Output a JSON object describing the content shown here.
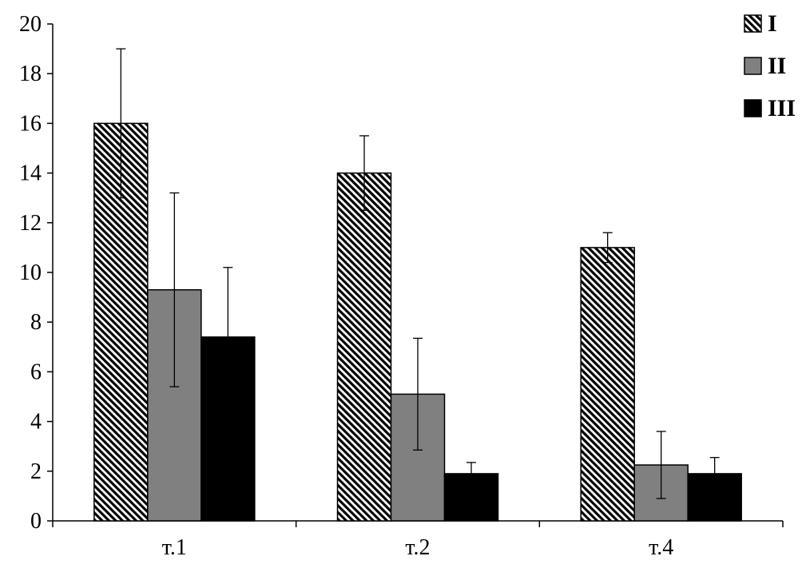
{
  "chart_data": {
    "type": "bar",
    "categories": [
      "т.1",
      "т.2",
      "т.4"
    ],
    "series": [
      {
        "name": "I",
        "values": [
          16.0,
          14.0,
          11.0
        ],
        "errors": [
          3.0,
          1.5,
          0.6
        ],
        "fill": "hatched",
        "color": "#000000"
      },
      {
        "name": "II",
        "values": [
          9.3,
          5.1,
          2.25
        ],
        "errors": [
          3.9,
          2.25,
          1.35
        ],
        "fill": "solid",
        "color": "#808080"
      },
      {
        "name": "III",
        "values": [
          7.4,
          1.9,
          1.9
        ],
        "errors": [
          2.8,
          0.45,
          0.65
        ],
        "fill": "solid",
        "color": "#000000"
      }
    ],
    "y_ticks": [
      "0",
      "2",
      "4",
      "6",
      "8",
      "10",
      "12",
      "14",
      "16",
      "18",
      "20"
    ],
    "ylim": [
      0,
      20
    ],
    "title": "",
    "xlabel": "",
    "ylabel": "",
    "grid": false,
    "legend_position": "top-right"
  }
}
